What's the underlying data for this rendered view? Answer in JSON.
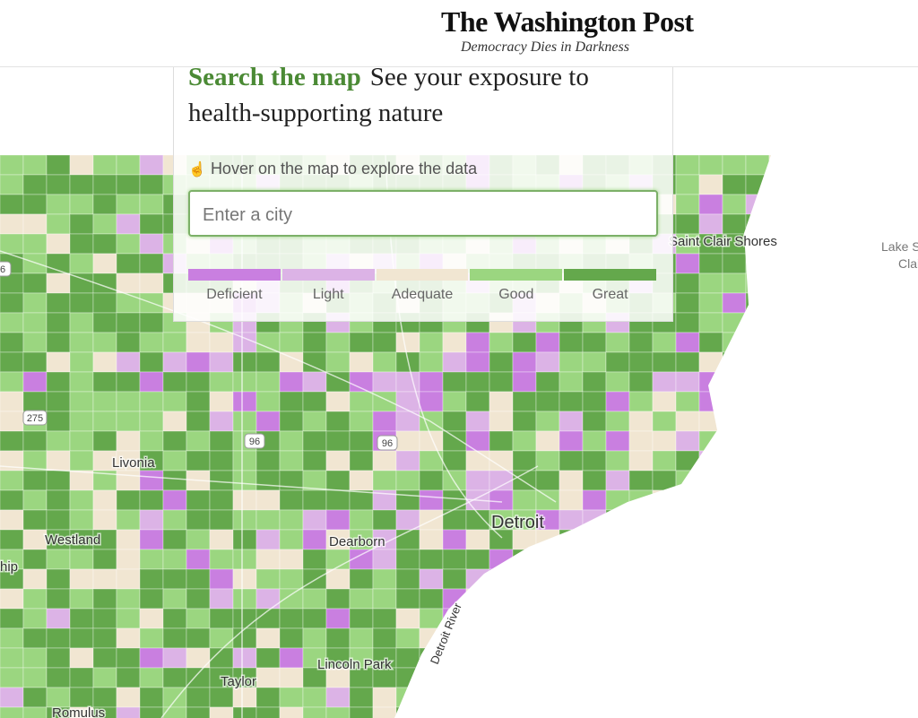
{
  "header": {
    "logo": "The Washington Post",
    "tagline": "Democracy Dies in Darkness"
  },
  "panel": {
    "title_highlight": "Search the map",
    "title_rest": "See your exposure to health-supporting nature",
    "hint": "Hover on the map to explore the data",
    "search_placeholder": "Enter a city",
    "legend": [
      {
        "label": "Deficient",
        "color": "#c97fe0"
      },
      {
        "label": "Light",
        "color": "#dcb3e6"
      },
      {
        "label": "Adequate",
        "color": "#f1e6d2"
      },
      {
        "label": "Good",
        "color": "#9bd680"
      },
      {
        "label": "Great",
        "color": "#64a84c"
      }
    ]
  },
  "map": {
    "places": [
      "Saint Clair Shores",
      "Lake S",
      "Clai",
      "Livonia",
      "Westland",
      "hip",
      "Dearborn",
      "Detroit",
      "Lincoln Park",
      "Taylor",
      "Romulus",
      "Detroit River"
    ],
    "highways": [
      "6",
      "275",
      "96",
      "96"
    ]
  }
}
